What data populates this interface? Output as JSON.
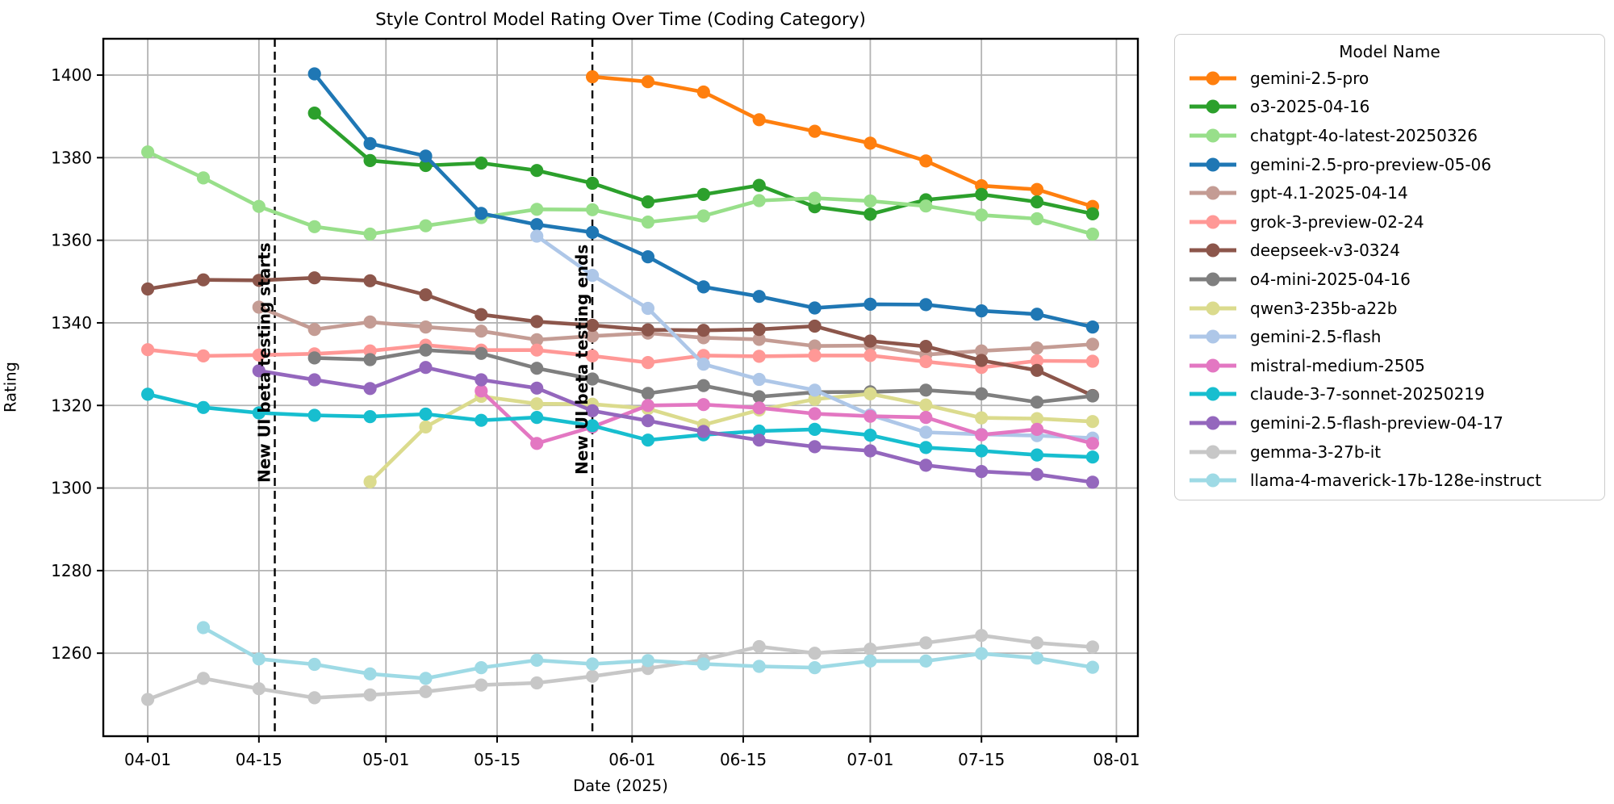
{
  "figure": {
    "title": "Style Control Model Rating Over Time (Coding Category)",
    "xlabel": "Date (2025)",
    "ylabel": "Rating"
  },
  "chart_data": {
    "type": "line",
    "title": "Style Control Model Rating Over Time (Coding Category)",
    "xlabel": "Date (2025)",
    "ylabel": "Rating",
    "legend_title": "Model Name",
    "legend_position": "right outside plot",
    "grid": true,
    "x_tick_labels": [
      "04-01",
      "04-15",
      "05-01",
      "05-15",
      "06-01",
      "06-15",
      "07-01",
      "07-15",
      "08-01"
    ],
    "y_ticks": [
      1260,
      1280,
      1300,
      1320,
      1340,
      1360,
      1380,
      1400
    ],
    "x_domain_days_from_04_01": [
      -5.6,
      124.7
    ],
    "ylim": [
      1239.9,
      1408.8
    ],
    "annotations": [
      {
        "type": "vline",
        "date": "04-17",
        "label": "New UI beta testing starts",
        "color": "#000000",
        "style": "dashed"
      },
      {
        "type": "vline",
        "date": "05-27",
        "label": "New UI beta testing ends",
        "color": "#000000",
        "style": "dashed"
      }
    ],
    "series": [
      {
        "name": "gemini-2.5-pro",
        "color": "#ff7f0e",
        "points": [
          [
            "05-27",
            1399.6
          ],
          [
            "06-03",
            1398.4
          ],
          [
            "06-10",
            1395.9
          ],
          [
            "06-17",
            1389.2
          ],
          [
            "06-24",
            1386.4
          ],
          [
            "07-01",
            1383.5
          ],
          [
            "07-08",
            1379.2
          ],
          [
            "07-15",
            1373.2
          ],
          [
            "07-22",
            1372.3
          ],
          [
            "07-29",
            1368.2
          ]
        ]
      },
      {
        "name": "o3-2025-04-16",
        "color": "#2ca02c",
        "points": [
          [
            "04-22",
            1390.8
          ],
          [
            "04-29",
            1379.3
          ],
          [
            "05-06",
            1378.1
          ],
          [
            "05-13",
            1378.7
          ],
          [
            "05-20",
            1376.9
          ],
          [
            "05-27",
            1373.8
          ],
          [
            "06-03",
            1369.3
          ],
          [
            "06-10",
            1371.1
          ],
          [
            "06-17",
            1373.3
          ],
          [
            "06-24",
            1368.1
          ],
          [
            "07-01",
            1366.3
          ],
          [
            "07-08",
            1369.8
          ],
          [
            "07-15",
            1371.1
          ],
          [
            "07-22",
            1369.3
          ],
          [
            "07-29",
            1366.4
          ]
        ]
      },
      {
        "name": "chatgpt-4o-latest-20250326",
        "color": "#98df8a",
        "points": [
          [
            "04-01",
            1381.4
          ],
          [
            "04-08",
            1375.1
          ],
          [
            "04-15",
            1368.2
          ],
          [
            "04-22",
            1363.3
          ],
          [
            "04-29",
            1361.5
          ],
          [
            "05-06",
            1363.5
          ],
          [
            "05-13",
            1365.5
          ],
          [
            "05-20",
            1367.5
          ],
          [
            "05-27",
            1367.4
          ],
          [
            "06-03",
            1364.4
          ],
          [
            "06-10",
            1365.9
          ],
          [
            "06-17",
            1369.6
          ],
          [
            "06-24",
            1370.2
          ],
          [
            "07-01",
            1369.5
          ],
          [
            "07-08",
            1368.3
          ],
          [
            "07-15",
            1366.1
          ],
          [
            "07-22",
            1365.2
          ],
          [
            "07-29",
            1361.5
          ]
        ]
      },
      {
        "name": "gemini-2.5-pro-preview-05-06",
        "color": "#1f77b4",
        "points": [
          [
            "04-22",
            1400.3
          ],
          [
            "04-29",
            1383.4
          ],
          [
            "05-06",
            1380.4
          ],
          [
            "05-13",
            1366.5
          ],
          [
            "05-20",
            1363.8
          ],
          [
            "05-27",
            1361.9
          ],
          [
            "06-03",
            1356.0
          ],
          [
            "06-10",
            1348.7
          ],
          [
            "06-17",
            1346.4
          ],
          [
            "06-24",
            1343.6
          ],
          [
            "07-01",
            1344.5
          ],
          [
            "07-08",
            1344.4
          ],
          [
            "07-15",
            1342.9
          ],
          [
            "07-22",
            1342.1
          ],
          [
            "07-29",
            1339.0
          ]
        ]
      },
      {
        "name": "gpt-4.1-2025-04-14",
        "color": "#c49c94",
        "points": [
          [
            "04-15",
            1343.8
          ],
          [
            "04-22",
            1338.4
          ],
          [
            "04-29",
            1340.2
          ],
          [
            "05-06",
            1339.0
          ],
          [
            "05-13",
            1338.0
          ],
          [
            "05-20",
            1335.9
          ],
          [
            "05-27",
            1336.8
          ],
          [
            "06-03",
            1337.5
          ],
          [
            "06-10",
            1336.4
          ],
          [
            "06-17",
            1336.0
          ],
          [
            "06-24",
            1334.4
          ],
          [
            "07-01",
            1334.5
          ],
          [
            "07-08",
            1332.3
          ],
          [
            "07-15",
            1333.2
          ],
          [
            "07-22",
            1333.9
          ],
          [
            "07-29",
            1334.8
          ]
        ]
      },
      {
        "name": "grok-3-preview-02-24",
        "color": "#ff9896",
        "points": [
          [
            "04-01",
            1333.5
          ],
          [
            "04-08",
            1332.0
          ],
          [
            "04-15",
            1332.2
          ],
          [
            "04-22",
            1332.5
          ],
          [
            "04-29",
            1333.2
          ],
          [
            "05-06",
            1334.6
          ],
          [
            "05-13",
            1333.4
          ],
          [
            "05-20",
            1333.4
          ],
          [
            "05-27",
            1332.0
          ],
          [
            "06-03",
            1330.4
          ],
          [
            "06-10",
            1332.1
          ],
          [
            "06-17",
            1331.9
          ],
          [
            "06-24",
            1332.1
          ],
          [
            "07-01",
            1332.1
          ],
          [
            "07-08",
            1330.6
          ],
          [
            "07-15",
            1329.2
          ],
          [
            "07-22",
            1330.8
          ],
          [
            "07-29",
            1330.7
          ]
        ]
      },
      {
        "name": "deepseek-v3-0324",
        "color": "#8c564b",
        "points": [
          [
            "04-01",
            1348.2
          ],
          [
            "04-08",
            1350.4
          ],
          [
            "04-15",
            1350.3
          ],
          [
            "04-22",
            1350.9
          ],
          [
            "04-29",
            1350.2
          ],
          [
            "05-06",
            1346.8
          ],
          [
            "05-13",
            1342.0
          ],
          [
            "05-20",
            1340.3
          ],
          [
            "05-27",
            1339.4
          ],
          [
            "06-03",
            1338.3
          ],
          [
            "06-10",
            1338.2
          ],
          [
            "06-17",
            1338.4
          ],
          [
            "06-24",
            1339.2
          ],
          [
            "07-01",
            1335.6
          ],
          [
            "07-08",
            1334.3
          ],
          [
            "07-15",
            1330.9
          ],
          [
            "07-22",
            1328.5
          ],
          [
            "07-29",
            1322.4
          ]
        ]
      },
      {
        "name": "o4-mini-2025-04-16",
        "color": "#7f7f7f",
        "points": [
          [
            "04-22",
            1331.5
          ],
          [
            "04-29",
            1331.1
          ],
          [
            "05-06",
            1333.4
          ],
          [
            "05-13",
            1332.6
          ],
          [
            "05-20",
            1329.0
          ],
          [
            "05-27",
            1326.4
          ],
          [
            "06-03",
            1322.9
          ],
          [
            "06-10",
            1324.8
          ],
          [
            "06-17",
            1322.1
          ],
          [
            "06-24",
            1323.2
          ],
          [
            "07-01",
            1323.3
          ],
          [
            "07-08",
            1323.7
          ],
          [
            "07-15",
            1322.8
          ],
          [
            "07-22",
            1320.8
          ],
          [
            "07-29",
            1322.3
          ]
        ]
      },
      {
        "name": "qwen3-235b-a22b",
        "color": "#dbdb8d",
        "points": [
          [
            "04-29",
            1301.5
          ],
          [
            "05-06",
            1314.8
          ],
          [
            "05-13",
            1322.2
          ],
          [
            "05-20",
            1320.4
          ],
          [
            "05-27",
            1320.3
          ],
          [
            "06-03",
            1319.2
          ],
          [
            "06-10",
            1315.3
          ],
          [
            "06-17",
            1318.9
          ],
          [
            "06-24",
            1321.5
          ],
          [
            "07-01",
            1322.8
          ],
          [
            "07-08",
            1320.1
          ],
          [
            "07-15",
            1317.0
          ],
          [
            "07-22",
            1316.8
          ],
          [
            "07-29",
            1316.1
          ]
        ]
      },
      {
        "name": "gemini-2.5-flash",
        "color": "#aec7e8",
        "points": [
          [
            "05-20",
            1361.0
          ],
          [
            "05-27",
            1351.5
          ],
          [
            "06-03",
            1343.5
          ],
          [
            "06-10",
            1330.0
          ],
          [
            "06-17",
            1326.3
          ],
          [
            "06-24",
            1323.7
          ],
          [
            "07-01",
            1317.7
          ],
          [
            "07-08",
            1313.5
          ],
          [
            "07-15",
            1313.0
          ],
          [
            "07-22",
            1312.7
          ],
          [
            "07-29",
            1312.1
          ]
        ]
      },
      {
        "name": "mistral-medium-2505",
        "color": "#e377c2",
        "points": [
          [
            "05-13",
            1323.5
          ],
          [
            "05-20",
            1310.8
          ],
          [
            "05-27",
            1314.8
          ],
          [
            "06-03",
            1320.0
          ],
          [
            "06-10",
            1320.2
          ],
          [
            "06-17",
            1319.4
          ],
          [
            "06-24",
            1318.0
          ],
          [
            "07-01",
            1317.4
          ],
          [
            "07-08",
            1317.1
          ],
          [
            "07-15",
            1312.9
          ],
          [
            "07-22",
            1314.2
          ],
          [
            "07-29",
            1310.8
          ]
        ]
      },
      {
        "name": "claude-3-7-sonnet-20250219",
        "color": "#17becf",
        "points": [
          [
            "04-01",
            1322.7
          ],
          [
            "04-08",
            1319.5
          ],
          [
            "04-15",
            1318.2
          ],
          [
            "04-22",
            1317.6
          ],
          [
            "04-29",
            1317.3
          ],
          [
            "05-06",
            1317.9
          ],
          [
            "05-13",
            1316.4
          ],
          [
            "05-20",
            1317.1
          ],
          [
            "05-27",
            1315.1
          ],
          [
            "06-03",
            1311.6
          ],
          [
            "06-10",
            1312.9
          ],
          [
            "06-17",
            1313.8
          ],
          [
            "06-24",
            1314.2
          ],
          [
            "07-01",
            1312.8
          ],
          [
            "07-08",
            1309.8
          ],
          [
            "07-15",
            1309.0
          ],
          [
            "07-22",
            1308.0
          ],
          [
            "07-29",
            1307.5
          ]
        ]
      },
      {
        "name": "gemini-2.5-flash-preview-04-17",
        "color": "#9467bd",
        "points": [
          [
            "04-15",
            1328.4
          ],
          [
            "04-22",
            1326.2
          ],
          [
            "04-29",
            1324.1
          ],
          [
            "05-06",
            1329.2
          ],
          [
            "05-13",
            1326.2
          ],
          [
            "05-20",
            1324.2
          ],
          [
            "05-27",
            1318.7
          ],
          [
            "06-03",
            1316.3
          ],
          [
            "06-10",
            1313.7
          ],
          [
            "06-17",
            1311.6
          ],
          [
            "06-24",
            1310.0
          ],
          [
            "07-01",
            1309.0
          ],
          [
            "07-08",
            1305.5
          ],
          [
            "07-15",
            1304.0
          ],
          [
            "07-22",
            1303.3
          ],
          [
            "07-29",
            1301.4
          ]
        ]
      },
      {
        "name": "gemma-3-27b-it",
        "color": "#c7c7c7",
        "points": [
          [
            "04-01",
            1248.8
          ],
          [
            "04-08",
            1253.9
          ],
          [
            "04-15",
            1251.4
          ],
          [
            "04-22",
            1249.2
          ],
          [
            "04-29",
            1249.9
          ],
          [
            "05-06",
            1250.7
          ],
          [
            "05-13",
            1252.3
          ],
          [
            "05-20",
            1252.8
          ],
          [
            "05-27",
            1254.4
          ],
          [
            "06-03",
            1256.3
          ],
          [
            "06-10",
            1258.4
          ],
          [
            "06-17",
            1261.6
          ],
          [
            "06-24",
            1260.0
          ],
          [
            "07-01",
            1261.0
          ],
          [
            "07-08",
            1262.5
          ],
          [
            "07-15",
            1264.3
          ],
          [
            "07-22",
            1262.5
          ],
          [
            "07-29",
            1261.5
          ]
        ]
      },
      {
        "name": "llama-4-maverick-17b-128e-instruct",
        "color": "#9edae5",
        "points": [
          [
            "04-08",
            1266.2
          ],
          [
            "04-15",
            1258.6
          ],
          [
            "04-22",
            1257.3
          ],
          [
            "04-29",
            1255.0
          ],
          [
            "05-06",
            1253.9
          ],
          [
            "05-13",
            1256.5
          ],
          [
            "05-20",
            1258.3
          ],
          [
            "05-27",
            1257.4
          ],
          [
            "06-03",
            1258.2
          ],
          [
            "06-10",
            1257.4
          ],
          [
            "06-17",
            1256.8
          ],
          [
            "06-24",
            1256.5
          ],
          [
            "07-01",
            1258.1
          ],
          [
            "07-08",
            1258.1
          ],
          [
            "07-15",
            1259.9
          ],
          [
            "07-22",
            1258.8
          ],
          [
            "07-29",
            1256.6
          ]
        ]
      }
    ]
  }
}
